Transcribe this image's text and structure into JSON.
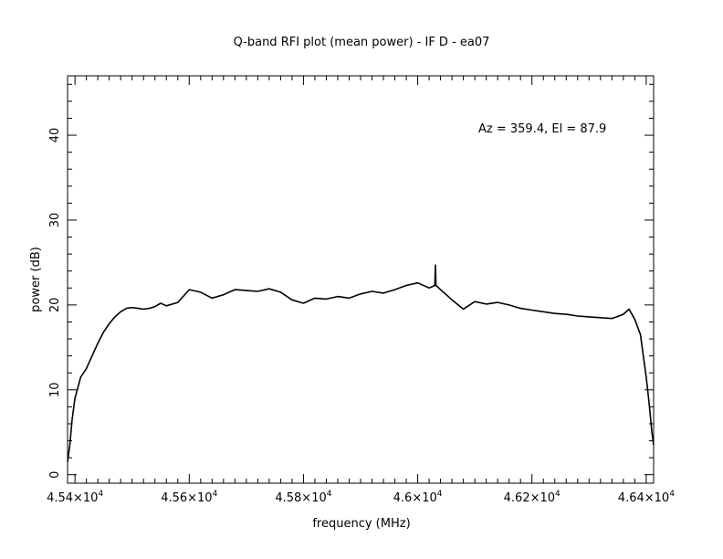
{
  "chart_data": {
    "type": "line",
    "title": "Q-band RFI plot (mean power) - IF D - ea07",
    "xlabel": "frequency (MHz)",
    "ylabel": "power (dB)",
    "annotation": "Az = 359.4, El = 87.9",
    "xlim": [
      45387,
      46413
    ],
    "ylim": [
      -1,
      47
    ],
    "x_ticks": [
      {
        "value": 45400,
        "mant": "4.54",
        "exp": "4"
      },
      {
        "value": 45600,
        "mant": "4.56",
        "exp": "4"
      },
      {
        "value": 45800,
        "mant": "4.58",
        "exp": "4"
      },
      {
        "value": 46000,
        "mant": "4.6",
        "exp": "4"
      },
      {
        "value": 46200,
        "mant": "4.62",
        "exp": "4"
      },
      {
        "value": 46400,
        "mant": "4.64",
        "exp": "4"
      }
    ],
    "y_ticks": [
      0,
      10,
      20,
      30,
      40
    ],
    "grid": false,
    "line_color": "#000000",
    "series": [
      {
        "x": [
          45387,
          45391,
          45395,
          45400,
          45410,
          45420,
          45430,
          45440,
          45450,
          45460,
          45470,
          45480,
          45490,
          45500,
          45510,
          45520,
          45530,
          45540,
          45550,
          45560,
          45580,
          45600,
          45620,
          45640,
          45660,
          45680,
          45700,
          45720,
          45740,
          45760,
          45780,
          45800,
          45820,
          45840,
          45860,
          45880,
          45900,
          45920,
          45940,
          45960,
          45980,
          46000,
          46020,
          46030,
          46031,
          46032,
          46040,
          46050,
          46060,
          46080,
          46100,
          46120,
          46140,
          46160,
          46180,
          46200,
          46220,
          46240,
          46260,
          46280,
          46300,
          46320,
          46340,
          46360,
          46370,
          46380,
          46390,
          46395,
          46400,
          46405,
          46410,
          46413
        ],
        "y": [
          1.5,
          3.5,
          6.5,
          9.0,
          11.5,
          12.5,
          14.0,
          15.5,
          16.8,
          17.8,
          18.6,
          19.2,
          19.6,
          19.7,
          19.6,
          19.5,
          19.6,
          19.8,
          20.2,
          19.9,
          20.3,
          21.8,
          21.5,
          20.8,
          21.2,
          21.8,
          21.7,
          21.6,
          21.9,
          21.5,
          20.6,
          20.2,
          20.8,
          20.7,
          21.0,
          20.8,
          21.3,
          21.6,
          21.4,
          21.8,
          22.3,
          22.6,
          22.0,
          22.3,
          24.7,
          22.3,
          21.8,
          21.2,
          20.6,
          19.5,
          20.4,
          20.1,
          20.3,
          20.0,
          19.6,
          19.4,
          19.2,
          19.0,
          18.9,
          18.7,
          18.6,
          18.5,
          18.4,
          18.9,
          19.5,
          18.3,
          16.5,
          14.0,
          11.5,
          8.5,
          5.0,
          3.5
        ]
      }
    ]
  }
}
